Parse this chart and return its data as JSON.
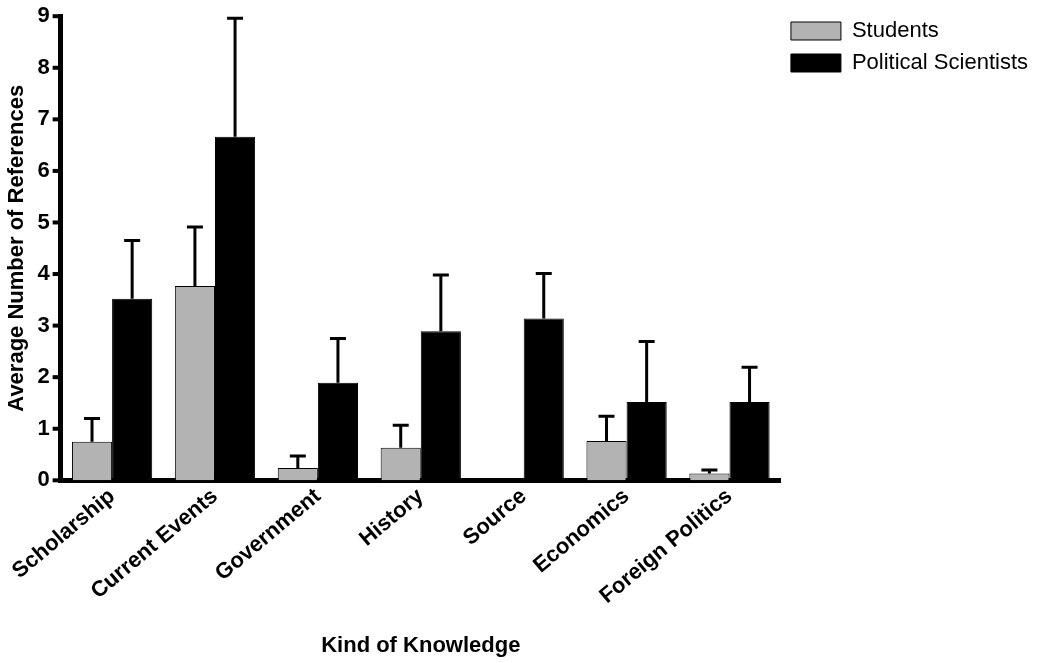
{
  "chart_data": {
    "type": "bar",
    "xlabel": "Kind of Knowledge",
    "ylabel": "Average Number of References",
    "categories": [
      "Scholarship",
      "Current Events",
      "Government",
      "History",
      "Source",
      "Economics",
      "Foreign Politics"
    ],
    "series": [
      {
        "name": "Students",
        "color": "#b3b3b3",
        "values": [
          0.75,
          3.77,
          0.24,
          0.63,
          0,
          0.76,
          0.13
        ],
        "errors": [
          [
            0.75,
            1.2
          ],
          [
            3.77,
            4.91
          ],
          [
            0.24,
            0.47
          ],
          [
            0.63,
            1.07
          ],
          null,
          [
            0.76,
            1.24
          ],
          [
            0.13,
            0.2
          ]
        ]
      },
      {
        "name": "Political Scientists",
        "color": "#000000",
        "values": [
          3.52,
          6.66,
          1.89,
          2.89,
          3.14,
          1.52,
          1.52
        ],
        "errors": [
          [
            3.52,
            4.65
          ],
          [
            6.66,
            8.96
          ],
          [
            1.89,
            2.75
          ],
          [
            2.89,
            3.98
          ],
          [
            3.14,
            4.01
          ],
          [
            1.52,
            2.69
          ],
          [
            1.52,
            2.19
          ]
        ]
      }
    ],
    "ylim": [
      0,
      9
    ],
    "yticks": [
      0,
      1,
      2,
      3,
      4,
      5,
      6,
      7,
      8,
      9
    ],
    "grid": false,
    "legend": "top right"
  }
}
